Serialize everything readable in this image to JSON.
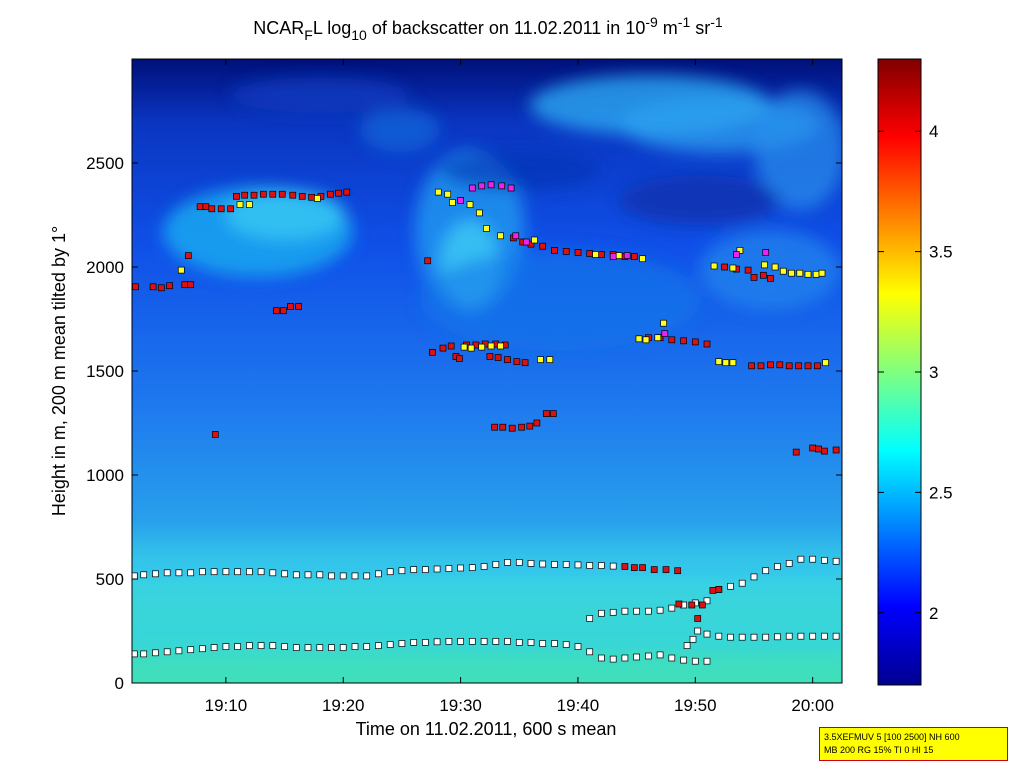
{
  "chart_data": {
    "type": "heatmap",
    "title": {
      "prefix": "NCAR",
      "sub1": "F",
      "mid1": "L log",
      "sub2": "10",
      "mid2": " of backscatter on 11.02.2011 in 10",
      "sup1": "-9",
      "mid3": " m",
      "sup2": "-1",
      "mid4": " sr",
      "sup3": "-1"
    },
    "xlabel": "Time on 11.02.2011, 600 s mean",
    "ylabel": "Height in m, 200 m mean tilted by 1°",
    "x_ticks": [
      "19:10",
      "19:20",
      "19:30",
      "19:40",
      "19:50",
      "20:00"
    ],
    "y_ticks": [
      "0",
      "500",
      "1000",
      "1500",
      "2000",
      "2500"
    ],
    "colorbar_ticks": [
      "2",
      "2.5",
      "3",
      "3.5",
      "4"
    ],
    "colorbar_range": [
      1.7,
      4.3
    ],
    "xlim_minutes": [
      1142,
      1202.5
    ],
    "ylim": [
      0,
      3000
    ],
    "colors": {
      "marker_red": "#dd1111",
      "marker_yellow": "#ffff22",
      "marker_magenta": "#ee22ee",
      "marker_white": "#ffffff"
    },
    "markers": {
      "red": [
        [
          1142.3,
          1905
        ],
        [
          1143.8,
          1905
        ],
        [
          1144.5,
          1900
        ],
        [
          1145.2,
          1910
        ],
        [
          1146.5,
          1915
        ],
        [
          1147.0,
          1915
        ],
        [
          1147.8,
          2290
        ],
        [
          1148.3,
          2290
        ],
        [
          1148.8,
          2280
        ],
        [
          1149.6,
          2280
        ],
        [
          1150.4,
          2280
        ],
        [
          1150.9,
          2340
        ],
        [
          1151.6,
          2345
        ],
        [
          1152.4,
          2345
        ],
        [
          1153.2,
          2350
        ],
        [
          1154.0,
          2350
        ],
        [
          1154.8,
          2350
        ],
        [
          1155.7,
          2345
        ],
        [
          1156.5,
          2340
        ],
        [
          1157.3,
          2335
        ],
        [
          1158.1,
          2340
        ],
        [
          1158.9,
          2350
        ],
        [
          1159.6,
          2355
        ],
        [
          1160.3,
          2360
        ],
        [
          1154.3,
          1790
        ],
        [
          1154.9,
          1790
        ],
        [
          1155.5,
          1810
        ],
        [
          1156.2,
          1810
        ],
        [
          1149.1,
          1195
        ],
        [
          1146.8,
          2055
        ],
        [
          1167.2,
          2030
        ],
        [
          1167.6,
          1590
        ],
        [
          1168.5,
          1610
        ],
        [
          1169.2,
          1620
        ],
        [
          1169.6,
          1570
        ],
        [
          1169.9,
          1560
        ],
        [
          1170.5,
          1625
        ],
        [
          1171.3,
          1625
        ],
        [
          1172.1,
          1630
        ],
        [
          1173.0,
          1630
        ],
        [
          1173.8,
          1625
        ],
        [
          1172.5,
          1570
        ],
        [
          1173.2,
          1565
        ],
        [
          1174.0,
          1555
        ],
        [
          1174.8,
          1545
        ],
        [
          1175.5,
          1540
        ],
        [
          1172.9,
          1230
        ],
        [
          1173.6,
          1230
        ],
        [
          1174.4,
          1225
        ],
        [
          1175.2,
          1230
        ],
        [
          1175.9,
          1235
        ],
        [
          1176.5,
          1250
        ],
        [
          1177.3,
          1295
        ],
        [
          1177.9,
          1295
        ],
        [
          1174.5,
          2140
        ],
        [
          1175.3,
          2120
        ],
        [
          1176.0,
          2110
        ],
        [
          1177.0,
          2100
        ],
        [
          1178.0,
          2080
        ],
        [
          1179.0,
          2075
        ],
        [
          1180.0,
          2070
        ],
        [
          1181.0,
          2065
        ],
        [
          1182.0,
          2060
        ],
        [
          1183.0,
          2060
        ],
        [
          1184.0,
          2050
        ],
        [
          1184.8,
          2050
        ],
        [
          1186.0,
          1660
        ],
        [
          1187.0,
          1660
        ],
        [
          1188.0,
          1650
        ],
        [
          1189.0,
          1645
        ],
        [
          1190.0,
          1640
        ],
        [
          1191.0,
          1630
        ],
        [
          1184.0,
          560
        ],
        [
          1184.8,
          555
        ],
        [
          1185.5,
          555
        ],
        [
          1186.5,
          545
        ],
        [
          1187.5,
          545
        ],
        [
          1188.5,
          540
        ],
        [
          1188.6,
          380
        ],
        [
          1189.7,
          375
        ],
        [
          1190.2,
          310
        ],
        [
          1190.6,
          375
        ],
        [
          1191.5,
          445
        ],
        [
          1192.0,
          450
        ],
        [
          1192.5,
          2000
        ],
        [
          1193.5,
          1990
        ],
        [
          1194.5,
          1985
        ],
        [
          1195.0,
          1950
        ],
        [
          1195.8,
          1960
        ],
        [
          1196.4,
          1945
        ],
        [
          1194.8,
          1525
        ],
        [
          1195.6,
          1525
        ],
        [
          1196.4,
          1530
        ],
        [
          1197.2,
          1530
        ],
        [
          1198.0,
          1525
        ],
        [
          1198.8,
          1525
        ],
        [
          1199.6,
          1525
        ],
        [
          1200.4,
          1525
        ],
        [
          1198.6,
          1110
        ],
        [
          1200.0,
          1130
        ],
        [
          1200.5,
          1125
        ],
        [
          1201.0,
          1115
        ],
        [
          1202.0,
          1120
        ]
      ],
      "yellow": [
        [
          1146.2,
          1985
        ],
        [
          1151.2,
          2300
        ],
        [
          1152.0,
          2300
        ],
        [
          1157.8,
          2330
        ],
        [
          1168.1,
          2360
        ],
        [
          1168.9,
          2350
        ],
        [
          1170.3,
          1615
        ],
        [
          1170.9,
          1610
        ],
        [
          1171.8,
          1615
        ],
        [
          1172.6,
          1620
        ],
        [
          1173.4,
          1620
        ],
        [
          1176.8,
          1555
        ],
        [
          1177.6,
          1555
        ],
        [
          1169.3,
          2310
        ],
        [
          1170.8,
          2300
        ],
        [
          1171.6,
          2260
        ],
        [
          1172.2,
          2185
        ],
        [
          1173.4,
          2150
        ],
        [
          1176.3,
          2130
        ],
        [
          1181.5,
          2060
        ],
        [
          1183.5,
          2055
        ],
        [
          1185.5,
          2040
        ],
        [
          1185.2,
          1655
        ],
        [
          1185.8,
          1650
        ],
        [
          1186.8,
          1660
        ],
        [
          1187.3,
          1730
        ],
        [
          1192.0,
          1545
        ],
        [
          1192.6,
          1540
        ],
        [
          1193.2,
          1540
        ],
        [
          1193.2,
          1995
        ],
        [
          1193.8,
          2080
        ],
        [
          1195.9,
          2010
        ],
        [
          1196.8,
          2000
        ],
        [
          1197.5,
          1980
        ],
        [
          1198.2,
          1970
        ],
        [
          1198.9,
          1970
        ],
        [
          1199.6,
          1965
        ],
        [
          1200.3,
          1965
        ],
        [
          1201.1,
          1540
        ],
        [
          1200.8,
          1970
        ],
        [
          1191.6,
          2005
        ]
      ],
      "magenta": [
        [
          1170.0,
          2320
        ],
        [
          1171.0,
          2380
        ],
        [
          1171.8,
          2390
        ],
        [
          1172.6,
          2395
        ],
        [
          1173.5,
          2390
        ],
        [
          1174.3,
          2380
        ],
        [
          1174.7,
          2150
        ],
        [
          1175.6,
          2120
        ],
        [
          1183.0,
          2050
        ],
        [
          1184.2,
          2055
        ],
        [
          1187.4,
          1680
        ],
        [
          1193.5,
          2060
        ],
        [
          1196.0,
          2070
        ]
      ],
      "white_upper": [
        [
          1142.2,
          515
        ],
        [
          1143.0,
          520
        ],
        [
          1144.0,
          525
        ],
        [
          1145.0,
          530
        ],
        [
          1146.0,
          530
        ],
        [
          1147.0,
          530
        ],
        [
          1148.0,
          535
        ],
        [
          1149.0,
          535
        ],
        [
          1150.0,
          535
        ],
        [
          1151.0,
          535
        ],
        [
          1152.0,
          535
        ],
        [
          1153.0,
          535
        ],
        [
          1154.0,
          530
        ],
        [
          1155.0,
          525
        ],
        [
          1156.0,
          520
        ],
        [
          1157.0,
          520
        ],
        [
          1158.0,
          520
        ],
        [
          1159.0,
          515
        ],
        [
          1160.0,
          515
        ],
        [
          1161.0,
          515
        ],
        [
          1162.0,
          515
        ],
        [
          1163.0,
          525
        ],
        [
          1164.0,
          535
        ],
        [
          1165.0,
          540
        ],
        [
          1166.0,
          545
        ],
        [
          1167.0,
          545
        ],
        [
          1168.0,
          548
        ],
        [
          1169.0,
          550
        ],
        [
          1170.0,
          553
        ],
        [
          1171.0,
          555
        ],
        [
          1172.0,
          560
        ],
        [
          1173.0,
          570
        ],
        [
          1174.0,
          580
        ],
        [
          1175.0,
          580
        ],
        [
          1176.0,
          575
        ],
        [
          1177.0,
          572
        ],
        [
          1178.0,
          570
        ],
        [
          1179.0,
          570
        ],
        [
          1180.0,
          568
        ],
        [
          1181.0,
          565
        ],
        [
          1182.0,
          565
        ],
        [
          1183.0,
          562
        ],
        [
          1192.0,
          450
        ],
        [
          1193.0,
          465
        ],
        [
          1194.0,
          480
        ],
        [
          1195.0,
          510
        ],
        [
          1196.0,
          540
        ],
        [
          1197.0,
          560
        ],
        [
          1198.0,
          575
        ],
        [
          1199.0,
          595
        ],
        [
          1200.0,
          595
        ],
        [
          1201.0,
          590
        ],
        [
          1202.0,
          585
        ]
      ],
      "white_lower": [
        [
          1142.2,
          140
        ],
        [
          1143.0,
          140
        ],
        [
          1144.0,
          145
        ],
        [
          1145.0,
          150
        ],
        [
          1146.0,
          155
        ],
        [
          1147.0,
          160
        ],
        [
          1148.0,
          165
        ],
        [
          1149.0,
          170
        ],
        [
          1150.0,
          175
        ],
        [
          1151.0,
          175
        ],
        [
          1152.0,
          180
        ],
        [
          1153.0,
          180
        ],
        [
          1154.0,
          180
        ],
        [
          1155.0,
          175
        ],
        [
          1156.0,
          170
        ],
        [
          1157.0,
          170
        ],
        [
          1158.0,
          170
        ],
        [
          1159.0,
          170
        ],
        [
          1160.0,
          170
        ],
        [
          1161.0,
          175
        ],
        [
          1162.0,
          175
        ],
        [
          1163.0,
          180
        ],
        [
          1164.0,
          185
        ],
        [
          1165.0,
          190
        ],
        [
          1166.0,
          195
        ],
        [
          1167.0,
          195
        ],
        [
          1168.0,
          198
        ],
        [
          1169.0,
          200
        ],
        [
          1170.0,
          200
        ],
        [
          1171.0,
          200
        ],
        [
          1172.0,
          200
        ],
        [
          1173.0,
          200
        ],
        [
          1174.0,
          200
        ],
        [
          1175.0,
          195
        ],
        [
          1176.0,
          195
        ],
        [
          1177.0,
          190
        ],
        [
          1178.0,
          190
        ],
        [
          1179.0,
          185
        ],
        [
          1180.0,
          175
        ],
        [
          1181.0,
          150
        ],
        [
          1182.0,
          120
        ],
        [
          1183.0,
          115
        ],
        [
          1184.0,
          120
        ],
        [
          1185.0,
          125
        ],
        [
          1186.0,
          130
        ],
        [
          1187.0,
          135
        ],
        [
          1188.0,
          120
        ],
        [
          1189.0,
          110
        ],
        [
          1190.0,
          105
        ],
        [
          1191.0,
          105
        ],
        [
          1181.0,
          310
        ],
        [
          1182.0,
          335
        ],
        [
          1183.0,
          340
        ],
        [
          1184.0,
          345
        ],
        [
          1185.0,
          345
        ],
        [
          1186.0,
          345
        ],
        [
          1187.0,
          350
        ],
        [
          1188.0,
          360
        ],
        [
          1189.0,
          375
        ],
        [
          1190.0,
          385
        ],
        [
          1191.0,
          395
        ],
        [
          1189.3,
          180
        ],
        [
          1189.8,
          210
        ],
        [
          1190.2,
          250
        ],
        [
          1191.0,
          235
        ],
        [
          1192.0,
          225
        ],
        [
          1193.0,
          220
        ],
        [
          1194.0,
          220
        ],
        [
          1195.0,
          220
        ],
        [
          1196.0,
          220
        ],
        [
          1197.0,
          222
        ],
        [
          1198.0,
          225
        ],
        [
          1199.0,
          225
        ],
        [
          1200.0,
          225
        ],
        [
          1201.0,
          225
        ],
        [
          1202.0,
          225
        ]
      ]
    }
  },
  "note": {
    "line1": "3.5XEFMUV 5 [100 2500] NH 600",
    "line2": "MB 200 RG 15% TI 0 HI 15"
  }
}
